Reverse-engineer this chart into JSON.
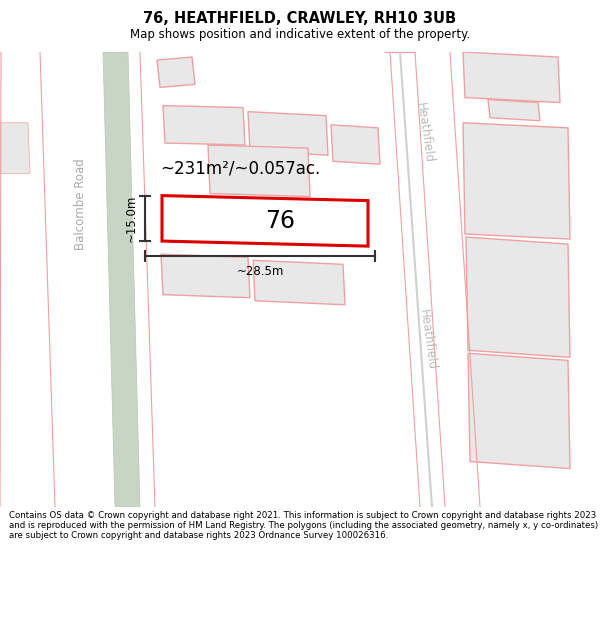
{
  "title": "76, HEATHFIELD, CRAWLEY, RH10 3UB",
  "subtitle": "Map shows position and indicative extent of the property.",
  "footer": "Contains OS data © Crown copyright and database right 2021. This information is subject to Crown copyright and database rights 2023 and is reproduced with the permission of HM Land Registry. The polygons (including the associated geometry, namely x, y co-ordinates) are subject to Crown copyright and database rights 2023 Ordnance Survey 100026316.",
  "map_bg": "#ffffff",
  "road_green_color": "#c8d5c4",
  "road_green_edge": "#b8c8b4",
  "property_outline_color": "#dd0000",
  "property_fill_color": "#ffffff",
  "neighboring_outline_color": "#f0a0a0",
  "neighboring_fill_color": "#e8e8e8",
  "road_line_color": "#d0d0d0",
  "road_outline_pink": "#f0a0a0",
  "street_color": "#c0c0c0",
  "label_76": "76",
  "area_label": "~231m²/~0.057ac.",
  "width_label": "~28.5m",
  "height_label": "~15.0m",
  "street_label_left1": "Balcombe Road",
  "street_label_right1": "Heathfield",
  "street_label_right2": "Heathfield",
  "title_fontsize": 10.5,
  "subtitle_fontsize": 8.5,
  "footer_fontsize": 6.2
}
